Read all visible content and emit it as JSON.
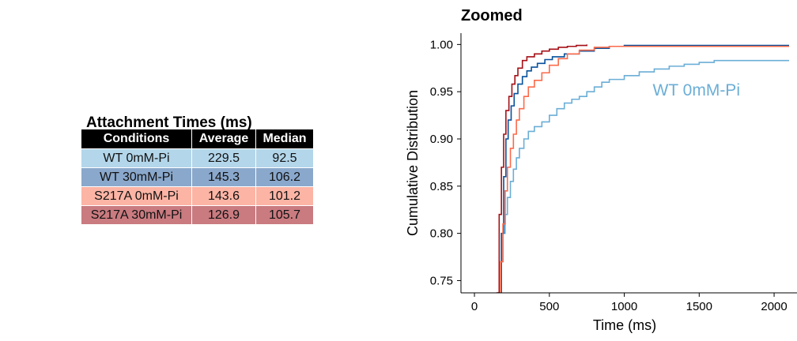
{
  "table": {
    "title": "Attachment Times (ms)",
    "headers": [
      "Conditions",
      "Average",
      "Median"
    ],
    "rows": [
      {
        "cells": [
          "WT 0mM-Pi",
          "229.5",
          "92.5"
        ],
        "color": "#b3d6ea"
      },
      {
        "cells": [
          "WT 30mM-Pi",
          "145.3",
          "106.2"
        ],
        "color": "#8aa8cc"
      },
      {
        "cells": [
          "S217A 0mM-Pi",
          "143.6",
          "101.2"
        ],
        "color": "#fcb4a5"
      },
      {
        "cells": [
          "S217A 30mM-Pi",
          "126.9",
          "105.7"
        ],
        "color": "#c97b80"
      }
    ]
  },
  "chart_data": {
    "type": "line",
    "title": "Zoomed",
    "xlabel": "Time (ms)",
    "ylabel": "Cumulative Distribution",
    "xlim": [
      -90,
      2100
    ],
    "ylim": [
      0.737,
      1.012
    ],
    "xticks": [
      0,
      500,
      1000,
      1500,
      2000
    ],
    "xtick_labels": [
      "0",
      "500",
      "1000",
      "1500",
      "2000"
    ],
    "yticks": [
      0.75,
      0.8,
      0.85,
      0.9,
      0.95,
      1.0
    ],
    "ytick_labels": [
      "0.75",
      "0.80",
      "0.85",
      "0.90",
      "0.95",
      "1.00"
    ],
    "grid": false,
    "step": true,
    "annotations": [
      {
        "text": "WT 0mM-Pi",
        "x": 1190,
        "y": 0.946,
        "color": "#6baed6"
      }
    ],
    "series": [
      {
        "color": "#6baed6",
        "x": [
          160,
          175,
          190,
          205,
          220,
          240,
          260,
          280,
          300,
          330,
          360,
          400,
          450,
          500,
          550,
          600,
          650,
          700,
          750,
          800,
          850,
          900,
          1000,
          1100,
          1200,
          1300,
          1400,
          1500,
          1600,
          2100
        ],
        "y": [
          0.737,
          0.77,
          0.8,
          0.82,
          0.838,
          0.855,
          0.868,
          0.88,
          0.89,
          0.9,
          0.908,
          0.913,
          0.918,
          0.925,
          0.932,
          0.938,
          0.942,
          0.945,
          0.95,
          0.955,
          0.96,
          0.963,
          0.967,
          0.971,
          0.974,
          0.977,
          0.979,
          0.981,
          0.983,
          0.983
        ]
      },
      {
        "color": "#08519c",
        "x": [
          165,
          180,
          195,
          210,
          225,
          245,
          265,
          290,
          320,
          350,
          380,
          420,
          470,
          520,
          600,
          700,
          800,
          900,
          1000,
          2100
        ],
        "y": [
          0.737,
          0.8,
          0.86,
          0.9,
          0.92,
          0.935,
          0.948,
          0.958,
          0.966,
          0.972,
          0.976,
          0.98,
          0.984,
          0.987,
          0.99,
          0.993,
          0.996,
          0.998,
          0.999,
          0.999
        ]
      },
      {
        "color": "#fb6a4a",
        "x": [
          158,
          175,
          190,
          205,
          220,
          240,
          260,
          280,
          300,
          330,
          360,
          400,
          450,
          500,
          560,
          620,
          700,
          800,
          900,
          1000,
          2100
        ],
        "y": [
          0.737,
          0.77,
          0.81,
          0.845,
          0.87,
          0.89,
          0.905,
          0.92,
          0.932,
          0.945,
          0.955,
          0.962,
          0.97,
          0.978,
          0.985,
          0.99,
          0.994,
          0.997,
          0.998,
          0.998,
          0.998
        ]
      },
      {
        "color": "#a50f15",
        "x": [
          150,
          165,
          180,
          195,
          210,
          230,
          250,
          270,
          290,
          320,
          350,
          400,
          450,
          500,
          560,
          620,
          680,
          750
        ],
        "y": [
          0.737,
          0.82,
          0.87,
          0.905,
          0.93,
          0.945,
          0.958,
          0.967,
          0.975,
          0.983,
          0.987,
          0.99,
          0.993,
          0.995,
          0.997,
          0.998,
          0.999,
          1.0
        ]
      }
    ]
  }
}
